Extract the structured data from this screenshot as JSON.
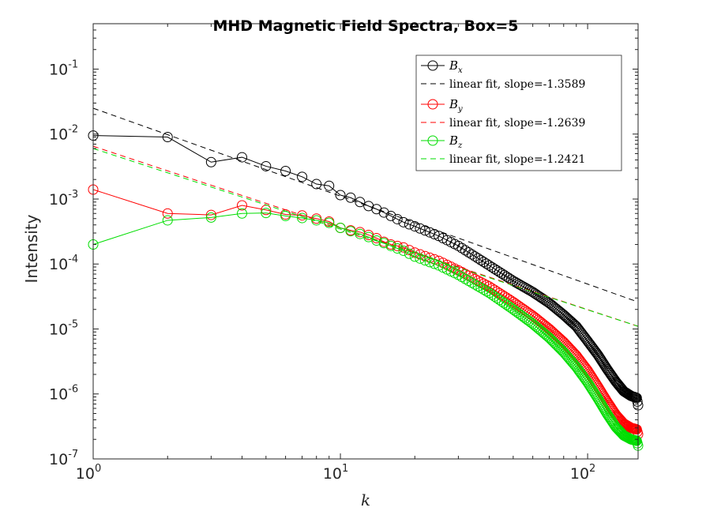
{
  "chart_data": {
    "type": "line",
    "title": "MHD Magnetic Field Spectra, Box=5",
    "xlabel": "k",
    "ylabel": "Intensity",
    "xscale": "log",
    "yscale": "log",
    "xlim": [
      1,
      160
    ],
    "ylim": [
      1e-07,
      0.5
    ],
    "grid": false,
    "legend_position": "top-right",
    "x_ticks": [
      {
        "base": "10",
        "exp": "0",
        "value": 1
      },
      {
        "base": "10",
        "exp": "1",
        "value": 10
      },
      {
        "base": "10",
        "exp": "2",
        "value": 100
      }
    ],
    "y_ticks": [
      {
        "base": "10",
        "exp": "-7",
        "value": 1e-07
      },
      {
        "base": "10",
        "exp": "-6",
        "value": 1e-06
      },
      {
        "base": "10",
        "exp": "-5",
        "value": 1e-05
      },
      {
        "base": "10",
        "exp": "-4",
        "value": 0.0001
      },
      {
        "base": "10",
        "exp": "-3",
        "value": 0.001
      },
      {
        "base": "10",
        "exp": "-2",
        "value": 0.01
      },
      {
        "base": "10",
        "exp": "-1",
        "value": 0.1
      }
    ],
    "series": [
      {
        "name": "B",
        "subscript": "x",
        "color": "#000000",
        "style": "line-circle",
        "knots": [
          [
            1,
            0.0095
          ],
          [
            2,
            0.009
          ],
          [
            3,
            0.0037
          ],
          [
            4,
            0.0044
          ],
          [
            5,
            0.0032
          ],
          [
            6,
            0.0027
          ],
          [
            7,
            0.0022
          ],
          [
            8,
            0.0017
          ],
          [
            9,
            0.0016
          ],
          [
            10,
            0.00115
          ],
          [
            11,
            0.00105
          ],
          [
            12,
            0.0009
          ],
          [
            13,
            0.00078
          ],
          [
            14,
            0.0007
          ],
          [
            15,
            0.00062
          ],
          [
            16,
            0.00055
          ],
          [
            18,
            0.00044
          ],
          [
            20,
            0.00038
          ],
          [
            25,
            0.00027
          ],
          [
            30,
            0.00019
          ],
          [
            40,
            9.5e-05
          ],
          [
            50,
            5.5e-05
          ],
          [
            60,
            3.7e-05
          ],
          [
            70,
            2.5e-05
          ],
          [
            80,
            1.65e-05
          ],
          [
            90,
            1.1e-05
          ],
          [
            100,
            6.5e-06
          ],
          [
            110,
            4e-06
          ],
          [
            120,
            2.4e-06
          ],
          [
            130,
            1.55e-06
          ],
          [
            140,
            1.1e-06
          ],
          [
            150,
            9.3e-07
          ],
          [
            158,
            8.7e-07
          ],
          [
            160,
            6.7e-07
          ]
        ]
      },
      {
        "name": "linear fit, slope=-1.3589",
        "color": "#000000",
        "style": "dashed",
        "endpoints": [
          [
            1,
            0.025
          ],
          [
            160,
            2.6e-05
          ]
        ]
      },
      {
        "name": "B",
        "subscript": "y",
        "color": "#ff0000",
        "style": "line-circle",
        "knots": [
          [
            1,
            0.0014
          ],
          [
            2,
            0.0006
          ],
          [
            3,
            0.00057
          ],
          [
            4,
            0.0008
          ],
          [
            5,
            0.00068
          ],
          [
            6,
            0.00058
          ],
          [
            7,
            0.00056
          ],
          [
            8,
            0.0005
          ],
          [
            9,
            0.00045
          ],
          [
            10,
            0.00036
          ],
          [
            11,
            0.00033
          ],
          [
            12,
            0.00031
          ],
          [
            13,
            0.00028
          ],
          [
            14,
            0.00025
          ],
          [
            15,
            0.00022
          ],
          [
            16,
            0.0002
          ],
          [
            18,
            0.00018
          ],
          [
            20,
            0.00015
          ],
          [
            25,
            0.000112
          ],
          [
            30,
            8e-05
          ],
          [
            40,
            4.5e-05
          ],
          [
            50,
            2.6e-05
          ],
          [
            60,
            1.6e-05
          ],
          [
            70,
            1e-05
          ],
          [
            80,
            6.3e-06
          ],
          [
            90,
            3.9e-06
          ],
          [
            100,
            2.3e-06
          ],
          [
            110,
            1.3e-06
          ],
          [
            120,
            7.6e-07
          ],
          [
            130,
            4.8e-07
          ],
          [
            140,
            3.5e-07
          ],
          [
            150,
            3e-07
          ],
          [
            158,
            2.85e-07
          ],
          [
            160,
            2.4e-07
          ]
        ]
      },
      {
        "name": "linear fit, slope=-1.2639",
        "color": "#ff0000",
        "style": "dashed",
        "endpoints": [
          [
            1,
            0.0065
          ],
          [
            160,
            1.1e-05
          ]
        ]
      },
      {
        "name": "B",
        "subscript": "z",
        "color": "#00dd00",
        "style": "line-circle",
        "knots": [
          [
            1,
            0.0002
          ],
          [
            2,
            0.00047
          ],
          [
            3,
            0.00052
          ],
          [
            4,
            0.0006
          ],
          [
            5,
            0.00061
          ],
          [
            6,
            0.00055
          ],
          [
            7,
            0.00051
          ],
          [
            8,
            0.00047
          ],
          [
            9,
            0.00043
          ],
          [
            10,
            0.00036
          ],
          [
            11,
            0.00032
          ],
          [
            12,
            0.00029
          ],
          [
            13,
            0.00026
          ],
          [
            14,
            0.00023
          ],
          [
            15,
            0.00021
          ],
          [
            16,
            0.00019
          ],
          [
            18,
            0.00016
          ],
          [
            20,
            0.00013
          ],
          [
            25,
            9.5e-05
          ],
          [
            30,
            6.8e-05
          ],
          [
            40,
            3.6e-05
          ],
          [
            50,
            2e-05
          ],
          [
            60,
            1.2e-05
          ],
          [
            70,
            7.3e-06
          ],
          [
            80,
            4.4e-06
          ],
          [
            90,
            2.6e-06
          ],
          [
            100,
            1.5e-06
          ],
          [
            110,
            8.5e-07
          ],
          [
            120,
            4.9e-07
          ],
          [
            130,
            3.1e-07
          ],
          [
            140,
            2.3e-07
          ],
          [
            150,
            2e-07
          ],
          [
            158,
            1.9e-07
          ],
          [
            160,
            1.6e-07
          ]
        ]
      },
      {
        "name": "linear fit, slope=-1.2421",
        "color": "#00dd00",
        "style": "dashed",
        "endpoints": [
          [
            1,
            0.006
          ],
          [
            160,
            1.1e-05
          ]
        ]
      }
    ]
  }
}
